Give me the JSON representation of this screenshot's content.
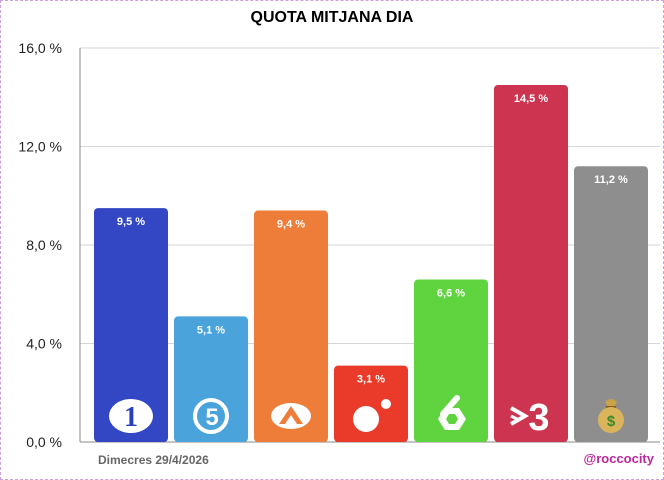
{
  "chart_data": {
    "type": "bar",
    "title": "QUOTA MITJANA DIA",
    "xlabel": "",
    "ylabel": "",
    "ylim": [
      0,
      16
    ],
    "yticks": [
      "0,0 %",
      "4,0 %",
      "8,0 %",
      "12,0 %",
      "16,0 %"
    ],
    "ytick_values": [
      0,
      4,
      8,
      12,
      16
    ],
    "grid": true,
    "categories": [
      "1",
      "5",
      "Antena 3",
      "Cuatro",
      "6",
      "3",
      "Altres"
    ],
    "values": [
      9.5,
      5.1,
      9.4,
      3.1,
      6.6,
      14.5,
      11.2
    ],
    "data_labels": [
      "9,5 %",
      "5,1 %",
      "9,4 %",
      "3,1 %",
      "6,6 %",
      "14,5 %",
      "11,2 %"
    ],
    "colors": [
      "#3347c4",
      "#4aa3db",
      "#ef7d3a",
      "#ea3a2a",
      "#5fd43f",
      "#cc3450",
      "#8e8e8e"
    ],
    "icons": [
      "la1-logo-icon",
      "telecinco-logo-icon",
      "antena3-logo-icon",
      "cuatro-logo-icon",
      "lasexta-logo-icon",
      "tv3-logo-icon",
      "money-bag-icon"
    ]
  },
  "footer": {
    "date": "Dimecres 29/4/2026",
    "handle": "@roccocity"
  }
}
